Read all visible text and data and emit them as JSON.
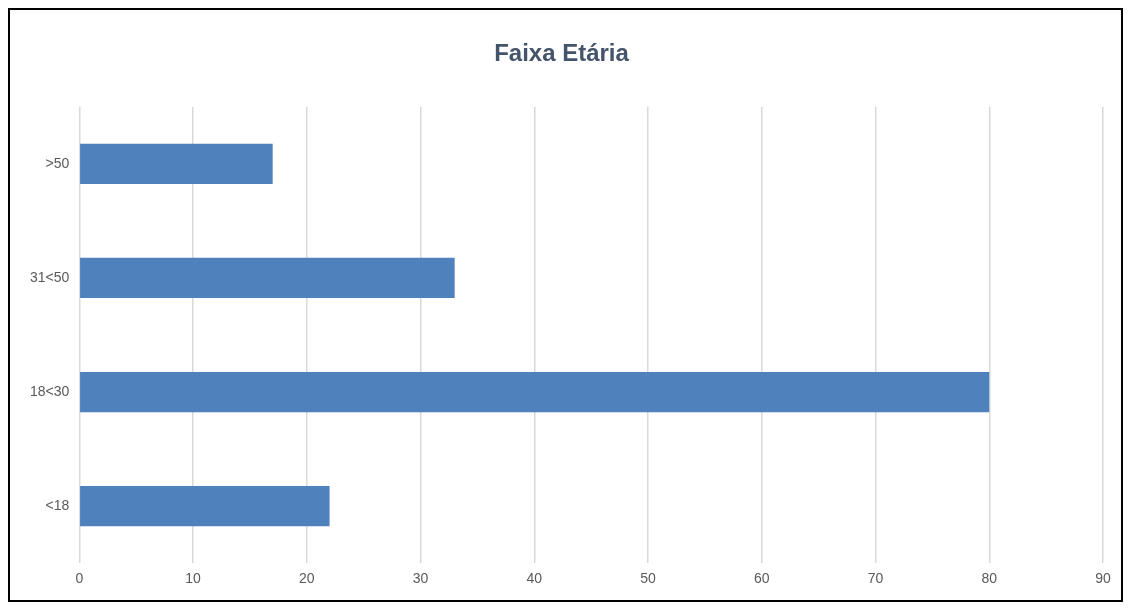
{
  "chart_data": {
    "type": "bar",
    "orientation": "horizontal",
    "title": "Faixa Etária",
    "categories": [
      ">50",
      "31<50",
      "18<30",
      "<18"
    ],
    "values": [
      17,
      33,
      80,
      22
    ],
    "color": "#4f81bd",
    "xlim": [
      0,
      90
    ],
    "xticks": [
      0,
      10,
      20,
      30,
      40,
      50,
      60,
      70,
      80,
      90
    ],
    "grid": "x",
    "legend": false
  }
}
